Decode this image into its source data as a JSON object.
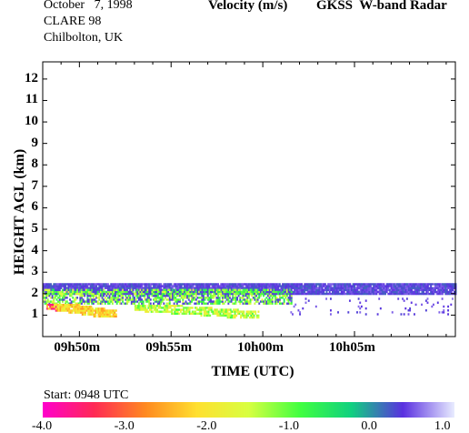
{
  "header": {
    "date": "October   7, 1998",
    "campaign": "CLARE 98",
    "location": "Chilbolton, UK",
    "quantity": "Velocity (m/s)",
    "instrument": "GKSS  W-band Radar"
  },
  "colorbar": {
    "start_label": "Start: 0948 UTC",
    "ticks": [
      "-4.0",
      "-3.0",
      "-2.0",
      "-1.0",
      "0.0",
      "1.0"
    ],
    "colors": [
      "#ff00cc",
      "#ff2a55",
      "#ff8a20",
      "#ffe030",
      "#d8ff40",
      "#40ff40",
      "#10d080",
      "#5a30e0",
      "#e8ecff"
    ]
  },
  "chart_data": {
    "type": "heatmap",
    "title": "Velocity (m/s)",
    "xlabel": "TIME (UTC)",
    "ylabel": "HEIGHT AGL (km)",
    "x_ticks": [
      "09h50m",
      "09h55m",
      "10h00m",
      "10h05m"
    ],
    "y_ticks": [
      "1",
      "2",
      "3",
      "4",
      "5",
      "6",
      "7",
      "8",
      "9",
      "10",
      "11",
      "12"
    ],
    "xlim_minutes_after_0948": [
      0,
      22.5
    ],
    "ylim_km": [
      0,
      12.8
    ],
    "value_range": [
      -4.0,
      1.0
    ],
    "layers": [
      {
        "name": "upper cloud band",
        "t_start": 0,
        "t_end": 22.5,
        "z_bottom": 1.95,
        "z_top": 2.4,
        "typical_velocity": 0.3
      },
      {
        "name": "mixed band",
        "t_start": 0,
        "t_end": 13.6,
        "z_bottom": 1.5,
        "z_top": 2.2,
        "typical_velocity": -1.0
      },
      {
        "name": "falling precipitation streak 1",
        "t_start": 0.2,
        "t_end": 4.0,
        "z_bottom": 0.9,
        "z_top": 1.5,
        "typical_velocity": -2.2
      },
      {
        "name": "falling precipitation streak 2",
        "t_start": 5.0,
        "t_end": 11.8,
        "z_bottom": 0.85,
        "z_top": 1.45,
        "typical_velocity": -1.3
      },
      {
        "name": "scattered echoes",
        "t_start": 13.5,
        "t_end": 22.3,
        "z_bottom": 1.0,
        "z_top": 1.8,
        "typical_velocity": 0.4
      }
    ]
  }
}
